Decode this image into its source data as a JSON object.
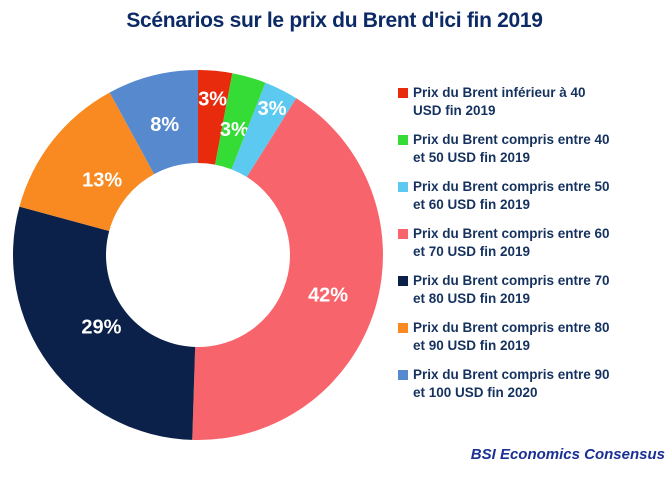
{
  "chart_data": {
    "type": "pie",
    "donut_hole_ratio": 0.5,
    "title": "Scénarios sur le prix du Brent d'ici fin 2019",
    "legend_position": "right",
    "grid": false,
    "source": "BSI Economics Consensus",
    "slices": [
      {
        "label": "Prix du Brent inférieur à 40 USD fin 2019",
        "label_lines": [
          "Prix du Brent inférieur à 40",
          "USD fin 2019"
        ],
        "value": 3,
        "data_label": "3%",
        "color": "#E82B0C"
      },
      {
        "label": "Prix du Brent compris entre 40 et 50 USD fin 2019",
        "label_lines": [
          "Prix du Brent compris entre 40",
          "et 50 USD fin 2019"
        ],
        "value": 3,
        "data_label": "3%",
        "color": "#35DC35"
      },
      {
        "label": "Prix du Brent compris entre 50 et 60 USD fin 2019",
        "label_lines": [
          "Prix du Brent compris entre 50",
          "et 60 USD fin 2019"
        ],
        "value": 3,
        "data_label": "3%",
        "color": "#5BC9F0"
      },
      {
        "label": "Prix du Brent compris entre 60 et 70 USD fin 2019",
        "label_lines": [
          "Prix du Brent compris entre 60",
          "et 70 USD fin 2019"
        ],
        "value": 42,
        "data_label": "42%",
        "color": "#F8646C"
      },
      {
        "label": "Prix du Brent compris entre 70 et 80 USD fin 2019",
        "label_lines": [
          "Prix du Brent compris entre 70",
          "et 80 USD fin 2019"
        ],
        "value": 29,
        "data_label": "29%",
        "color": "#0B2149"
      },
      {
        "label": "Prix du Brent compris entre 80 et 90 USD fin 2019",
        "label_lines": [
          "Prix du Brent compris entre 80",
          "et 90 USD fin 2019"
        ],
        "value": 13,
        "data_label": "13%",
        "color": "#F98A21"
      },
      {
        "label": "Prix du Brent compris entre 90 et 100 USD fin 2020",
        "label_lines": [
          "Prix du Brent compris entre 90",
          "et 100 USD fin 2020"
        ],
        "value": 8,
        "data_label": "8%",
        "color": "#5689CE"
      }
    ],
    "accent_colors": {
      "title_text": "#0C2A66",
      "legend_text": "#15325F",
      "source_text": "#1B2F94",
      "background": "#FFFFFF",
      "data_label_text": "#FFFFFF"
    }
  }
}
